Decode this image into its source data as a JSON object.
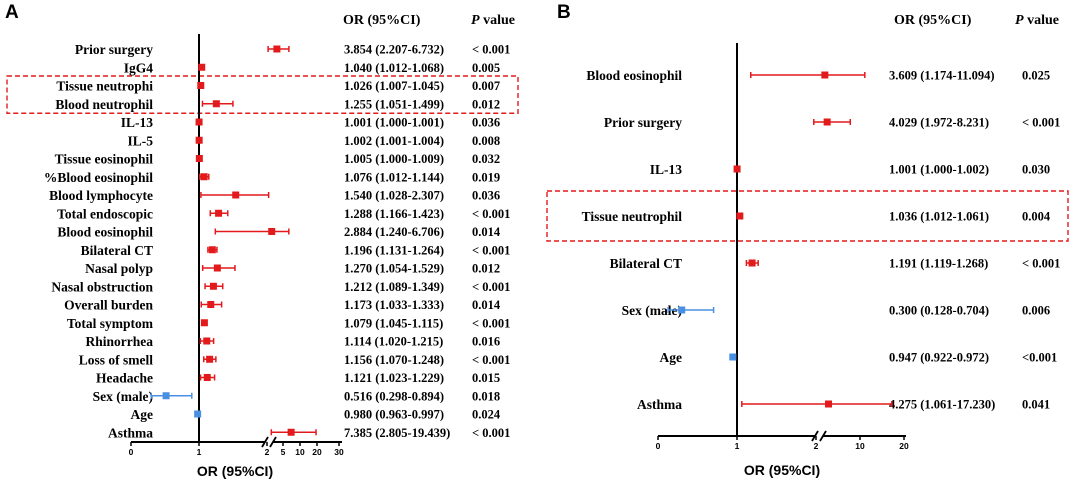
{
  "colors": {
    "risk": "#e31a1c",
    "protective": "#4a90e2",
    "frame": "#e31a1c",
    "axis": "#000000"
  },
  "chart_data": [
    {
      "type": "forest",
      "panel": "A",
      "header_or": "OR (95%CI)",
      "header_p": "P",
      "header_p_suffix": " value",
      "xlabel": "OR (95%CI)",
      "reference_line": 1,
      "axis_break": true,
      "xticks": [
        "0",
        "1",
        "2",
        "5",
        "10",
        "20",
        "30"
      ],
      "highlight_rows": [
        "Tissue neutrophi",
        "Blood neutrophil"
      ],
      "rows": [
        {
          "label": "Prior surgery",
          "or": 3.854,
          "lo": 2.207,
          "hi": 6.732,
          "ci_text": "3.854 (2.207-6.732)",
          "p": "< 0.001"
        },
        {
          "label": "IgG4",
          "or": 1.04,
          "lo": 1.012,
          "hi": 1.068,
          "ci_text": "1.040 (1.012-1.068)",
          "p": "0.005"
        },
        {
          "label": "Tissue neutrophi",
          "or": 1.026,
          "lo": 1.007,
          "hi": 1.045,
          "ci_text": "1.026 (1.007-1.045)",
          "p": "0.007"
        },
        {
          "label": "Blood neutrophil",
          "or": 1.255,
          "lo": 1.051,
          "hi": 1.499,
          "ci_text": "1.255 (1.051-1.499)",
          "p": "0.012"
        },
        {
          "label": "IL-13",
          "or": 1.001,
          "lo": 1.0,
          "hi": 1.001,
          "ci_text": "1.001 (1.000-1.001)",
          "p": "0.036"
        },
        {
          "label": "IL-5",
          "or": 1.002,
          "lo": 1.001,
          "hi": 1.004,
          "ci_text": "1.002 (1.001-1.004)",
          "p": "0.008"
        },
        {
          "label": "Tissue eosinophil",
          "or": 1.005,
          "lo": 1.0,
          "hi": 1.009,
          "ci_text": "1.005 (1.000-1.009)",
          "p": "0.032"
        },
        {
          "label": "%Blood eosinophil",
          "or": 1.076,
          "lo": 1.012,
          "hi": 1.144,
          "ci_text": "1.076 (1.012-1.144)",
          "p": "0.019"
        },
        {
          "label": "Blood lymphocyte",
          "or": 1.54,
          "lo": 1.028,
          "hi": 2.307,
          "ci_text": "1.540 (1.028-2.307)",
          "p": "0.036"
        },
        {
          "label": "Total endoscopic",
          "or": 1.288,
          "lo": 1.166,
          "hi": 1.423,
          "ci_text": "1.288 (1.166-1.423)",
          "p": "< 0.001"
        },
        {
          "label": "Blood eosinophil",
          "or": 2.884,
          "lo": 1.24,
          "hi": 6.706,
          "ci_text": "2.884 (1.240-6.706)",
          "p": "0.014"
        },
        {
          "label": "Bilateral CT",
          "or": 1.196,
          "lo": 1.131,
          "hi": 1.264,
          "ci_text": "1.196 (1.131-1.264)",
          "p": "< 0.001"
        },
        {
          "label": "Nasal polyp",
          "or": 1.27,
          "lo": 1.054,
          "hi": 1.529,
          "ci_text": "1.270 (1.054-1.529)",
          "p": "0.012"
        },
        {
          "label": "Nasal obstruction",
          "or": 1.212,
          "lo": 1.089,
          "hi": 1.349,
          "ci_text": "1.212 (1.089-1.349)",
          "p": "< 0.001"
        },
        {
          "label": "Overall burden",
          "or": 1.173,
          "lo": 1.033,
          "hi": 1.333,
          "ci_text": "1.173 (1.033-1.333)",
          "p": "0.014"
        },
        {
          "label": "Total symptom",
          "or": 1.079,
          "lo": 1.045,
          "hi": 1.115,
          "ci_text": "1.079 (1.045-1.115)",
          "p": "< 0.001"
        },
        {
          "label": "Rhinorrhea",
          "or": 1.114,
          "lo": 1.02,
          "hi": 1.215,
          "ci_text": "1.114 (1.020-1.215)",
          "p": "0.016"
        },
        {
          "label": "Loss of smell",
          "or": 1.156,
          "lo": 1.07,
          "hi": 1.248,
          "ci_text": "1.156 (1.070-1.248)",
          "p": "< 0.001"
        },
        {
          "label": "Headache",
          "or": 1.121,
          "lo": 1.023,
          "hi": 1.229,
          "ci_text": "1.121 (1.023-1.229)",
          "p": "0.015"
        },
        {
          "label": "Sex (male)",
          "or": 0.516,
          "lo": 0.298,
          "hi": 0.894,
          "ci_text": "0.516 (0.298-0.894)",
          "p": "0.018"
        },
        {
          "label": "Age",
          "or": 0.98,
          "lo": 0.963,
          "hi": 0.997,
          "ci_text": "0.980 (0.963-0.997)",
          "p": "0.024"
        },
        {
          "label": "Asthma",
          "or": 7.385,
          "lo": 2.805,
          "hi": 19.439,
          "ci_text": "7.385 (2.805-19.439)",
          "p": "< 0.001"
        }
      ]
    },
    {
      "type": "forest",
      "panel": "B",
      "header_or": "OR (95%CI)",
      "header_p": "P",
      "header_p_suffix": " value",
      "xlabel": "OR (95%CI)",
      "reference_line": 1,
      "axis_break": true,
      "xticks": [
        "0",
        "1",
        "2",
        "10",
        "20"
      ],
      "highlight_rows": [
        "Tissue neutrophil"
      ],
      "rows": [
        {
          "label": "Blood eosinophil",
          "or": 3.609,
          "lo": 1.174,
          "hi": 11.094,
          "ci_text": "3.609 (1.174-11.094)",
          "p": "0.025"
        },
        {
          "label": "Prior surgery",
          "or": 4.029,
          "lo": 1.972,
          "hi": 8.231,
          "ci_text": "4.029 (1.972-8.231)",
          "p": "< 0.001"
        },
        {
          "label": "IL-13",
          "or": 1.001,
          "lo": 1.0,
          "hi": 1.002,
          "ci_text": "1.001 (1.000-1.002)",
          "p": "0.030"
        },
        {
          "label": "Tissue neutrophil",
          "or": 1.036,
          "lo": 1.012,
          "hi": 1.061,
          "ci_text": "1.036 (1.012-1.061)",
          "p": "0.004"
        },
        {
          "label": "Bilateral CT",
          "or": 1.191,
          "lo": 1.119,
          "hi": 1.268,
          "ci_text": "1.191 (1.119-1.268)",
          "p": "< 0.001"
        },
        {
          "label": "Sex (male)",
          "or": 0.3,
          "lo": 0.128,
          "hi": 0.704,
          "ci_text": "0.300  (0.128-0.704)",
          "p": "0.006"
        },
        {
          "label": "Age",
          "or": 0.947,
          "lo": 0.922,
          "hi": 0.972,
          "ci_text": "0.947 (0.922-0.972)",
          "p": "<0.001"
        },
        {
          "label": "Asthma",
          "or": 4.275,
          "lo": 1.061,
          "hi": 17.23,
          "ci_text": "4.275 (1.061-17.230)",
          "p": "0.041"
        }
      ]
    }
  ]
}
